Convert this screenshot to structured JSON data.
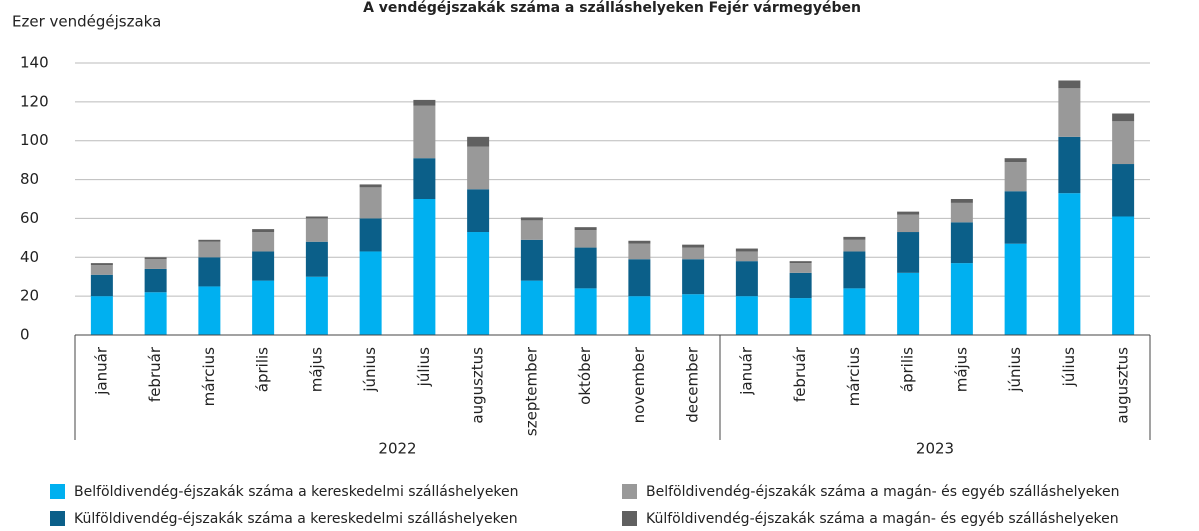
{
  "chart_data": {
    "type": "stacked_bar",
    "title": "A vendégéjszakák száma a szálláshelyeken Fejér vármegyében",
    "y_label": "Ezer vendégéjszaka",
    "categories": [
      "január",
      "február",
      "március",
      "április",
      "május",
      "június",
      "július",
      "augusztus",
      "szeptember",
      "október",
      "november",
      "december",
      "január",
      "február",
      "március",
      "április",
      "május",
      "június",
      "július",
      "augusztus"
    ],
    "groups": [
      {
        "name": "2022",
        "span": 12
      },
      {
        "name": "2023",
        "span": 8
      }
    ],
    "series": [
      {
        "name": "Belföldivendég-éjszakák száma a kereskedelmi szálláshelyeken",
        "color": "#00b0f0",
        "values": [
          20,
          22,
          25,
          28,
          30,
          43,
          70,
          53,
          28,
          24,
          20,
          21,
          20,
          19,
          24,
          32,
          37,
          47,
          73,
          61
        ]
      },
      {
        "name": "Külföldivendég-éjszakák száma a kereskedelmi szálláshelyeken",
        "color": "#0b5f89",
        "values": [
          11,
          12,
          15,
          15,
          18,
          17,
          21,
          22,
          21,
          21,
          19,
          18,
          18,
          13,
          19,
          21,
          21,
          27,
          29,
          27
        ]
      },
      {
        "name": "Belföldivendég-éjszakák száma a magán- és egyéb szálláshelyeken",
        "color": "#999999",
        "values": [
          5,
          5,
          8,
          10,
          12,
          16,
          27,
          22,
          10,
          9,
          8,
          6,
          5,
          5,
          6,
          9,
          10,
          15,
          25,
          22
        ]
      },
      {
        "name": "Külföldivendég-éjszakák száma a magán- és egyéb szálláshelyeken",
        "color": "#606060",
        "values": [
          1,
          1,
          1,
          1.5,
          1,
          1.5,
          3,
          5,
          1.5,
          1.5,
          1.5,
          1.5,
          1.5,
          1,
          1.5,
          1.5,
          2,
          2,
          4,
          4
        ]
      }
    ],
    "ylim": [
      0,
      140
    ],
    "yticks": [
      0,
      20,
      40,
      60,
      80,
      100,
      120,
      140
    ],
    "grid": true,
    "legend": "bottom"
  }
}
